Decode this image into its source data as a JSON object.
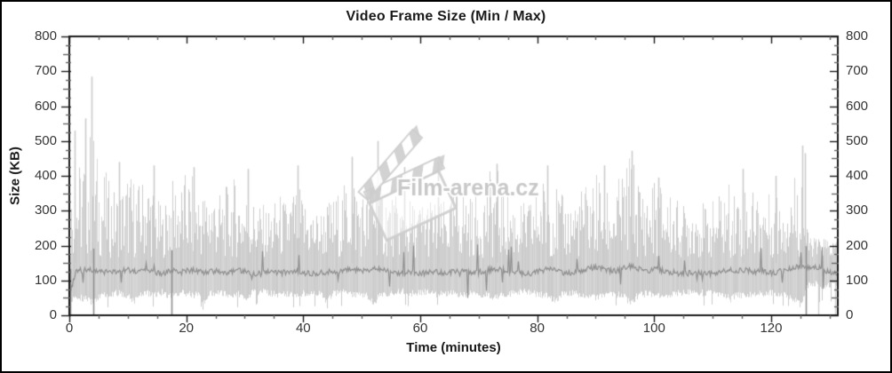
{
  "window": {
    "background": "#ffffff",
    "border_color": "#000000"
  },
  "watermark": {
    "text": "Film-arena.cz",
    "icon": "film-clapperboard-icon",
    "text_color": "#c5c5c5",
    "outline_color": "#ffffff",
    "icon_color": "#cdcdcd"
  },
  "chart_data": {
    "type": "line",
    "title": "Video Frame Size (Min / Max)",
    "xlabel": "Time (minutes)",
    "ylabel": "Size (KB)",
    "xlim": [
      0,
      131.4
    ],
    "ylim": [
      0,
      800
    ],
    "x_major_ticks": [
      0,
      20,
      40,
      60,
      80,
      100,
      120
    ],
    "x_minor_step": 5,
    "y_major_ticks": [
      0,
      100,
      200,
      300,
      400,
      500,
      600,
      700,
      800
    ],
    "y_minor_step": 25,
    "right_axis_mirror": true,
    "grid": false,
    "legend": null,
    "colors": {
      "band": "#c9c9c9",
      "avg_line": "#8f8f8f",
      "axis": "#1c1c1c",
      "minor_tick": "#666666",
      "tick_label": "#353535"
    },
    "sample_step_minutes": 1,
    "series": [
      {
        "name": "max",
        "role": "upper_envelope_KB",
        "values": [
          340,
          420,
          460,
          520,
          560,
          430,
          420,
          380,
          360,
          380,
          420,
          400,
          380,
          420,
          390,
          340,
          300,
          380,
          400,
          380,
          420,
          400,
          380,
          360,
          390,
          370,
          350,
          380,
          400,
          370,
          360,
          340,
          330,
          320,
          310,
          330,
          350,
          330,
          360,
          380,
          340,
          320,
          300,
          310,
          330,
          340,
          360,
          380,
          440,
          400,
          360,
          380,
          480,
          420,
          370,
          350,
          340,
          330,
          340,
          320,
          330,
          350,
          340,
          320,
          330,
          350,
          370,
          390,
          360,
          340,
          360,
          380,
          420,
          430,
          390,
          360,
          340,
          330,
          320,
          340,
          380,
          400,
          420,
          380,
          350,
          330,
          340,
          360,
          380,
          400,
          420,
          400,
          380,
          360,
          400,
          440,
          470,
          420,
          380,
          360,
          400,
          390,
          370,
          350,
          330,
          320,
          330,
          350,
          330,
          310,
          330,
          350,
          370,
          390,
          370,
          400,
          380,
          360,
          380,
          360,
          340,
          360,
          380,
          400,
          420,
          480,
          250,
          230,
          220,
          230,
          220,
          210
        ]
      },
      {
        "name": "avg",
        "role": "center_line_KB",
        "values": [
          60,
          125,
          130,
          128,
          132,
          126,
          124,
          122,
          125,
          128,
          130,
          126,
          124,
          128,
          125,
          122,
          120,
          126,
          128,
          124,
          127,
          130,
          126,
          123,
          125,
          128,
          124,
          122,
          126,
          129,
          125,
          122,
          120,
          123,
          126,
          124,
          121,
          124,
          127,
          125,
          122,
          120,
          118,
          121,
          124,
          126,
          128,
          130,
          133,
          129,
          126,
          130,
          136,
          132,
          128,
          125,
          122,
          120,
          123,
          121,
          119,
          122,
          125,
          123,
          120,
          123,
          126,
          129,
          125,
          122,
          124,
          127,
          131,
          134,
          129,
          125,
          122,
          120,
          118,
          121,
          125,
          129,
          133,
          128,
          124,
          121,
          123,
          127,
          130,
          134,
          137,
          133,
          129,
          126,
          130,
          136,
          140,
          135,
          130,
          127,
          132,
          130,
          127,
          124,
          121,
          119,
          121,
          124,
          121,
          118,
          121,
          124,
          127,
          130,
          126,
          131,
          128,
          124,
          127,
          123,
          120,
          124,
          128,
          132,
          136,
          140,
          138,
          142,
          136,
          130,
          125,
          118
        ]
      },
      {
        "name": "min",
        "role": "lower_envelope_KB",
        "values": [
          40,
          55,
          50,
          45,
          35,
          55,
          60,
          62,
          65,
          60,
          58,
          40,
          62,
          65,
          60,
          63,
          66,
          55,
          60,
          64,
          62,
          58,
          60,
          38,
          62,
          65,
          62,
          60,
          58,
          62,
          45,
          64,
          66,
          68,
          64,
          62,
          60,
          63,
          60,
          58,
          62,
          65,
          62,
          60,
          35,
          62,
          64,
          66,
          62,
          60,
          58,
          55,
          30,
          58,
          62,
          64,
          66,
          68,
          65,
          62,
          64,
          66,
          62,
          60,
          62,
          65,
          60,
          58,
          62,
          64,
          62,
          58,
          55,
          52,
          58,
          62,
          65,
          68,
          66,
          64,
          62,
          58,
          55,
          40,
          58,
          62,
          64,
          60,
          58,
          55,
          52,
          55,
          58,
          62,
          58,
          50,
          35,
          55,
          60,
          62,
          58,
          55,
          58,
          62,
          64,
          66,
          64,
          62,
          64,
          66,
          64,
          62,
          60,
          45,
          60,
          55,
          58,
          62,
          60,
          64,
          66,
          62,
          58,
          55,
          45,
          30,
          85,
          90,
          88,
          85,
          88,
          90
        ]
      }
    ],
    "spikes": [
      {
        "x": 0.9,
        "v": 530
      },
      {
        "x": 2.7,
        "v": 565
      },
      {
        "x": 3.8,
        "v": 685
      },
      {
        "x": 8.5,
        "v": 440
      },
      {
        "x": 14.5,
        "v": 430
      },
      {
        "x": 21.2,
        "v": 425
      },
      {
        "x": 30.5,
        "v": 420
      },
      {
        "x": 39.0,
        "v": 430
      },
      {
        "x": 48.3,
        "v": 455
      },
      {
        "x": 52.7,
        "v": 500
      },
      {
        "x": 57.2,
        "v": 425
      },
      {
        "x": 63.0,
        "v": 440
      },
      {
        "x": 73.0,
        "v": 435
      },
      {
        "x": 81.8,
        "v": 430
      },
      {
        "x": 91.5,
        "v": 430
      },
      {
        "x": 96.2,
        "v": 472
      },
      {
        "x": 100.7,
        "v": 395
      },
      {
        "x": 115.2,
        "v": 420
      },
      {
        "x": 120.8,
        "v": 400
      },
      {
        "x": 125.3,
        "v": 487
      },
      {
        "x": 125.8,
        "v": 465
      }
    ],
    "dropouts_to_zero": [
      0.2,
      4.1,
      17.4,
      125.9
    ],
    "band_dropouts": [
      128.1,
      130.9
    ],
    "noise_amp": {
      "max": 55,
      "min": 10,
      "avg": 8
    }
  }
}
